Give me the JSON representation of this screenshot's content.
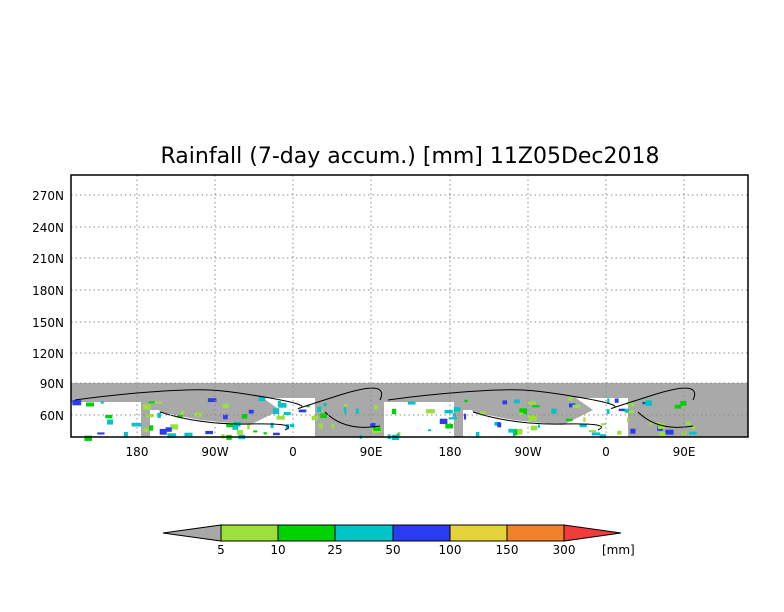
{
  "title": "Rainfall (7-day accum.) [mm] 11Z05Dec2018",
  "map": {
    "lat_labels": [
      "270N",
      "240N",
      "210N",
      "180N",
      "150N",
      "120N",
      "90N",
      "60N"
    ],
    "lon_labels": [
      "180",
      "90W",
      "0",
      "90E",
      "180",
      "90W",
      "0",
      "90E"
    ],
    "land_color": "#a9a9a9",
    "ocean_color": "#ffffff",
    "coast_color": "#000000"
  },
  "colorbar": {
    "unit": "[mm]",
    "tick_labels": [
      "5",
      "10",
      "25",
      "50",
      "100",
      "150",
      "300"
    ],
    "colors": [
      "#a8a8a8",
      "#9be03c",
      "#00d200",
      "#00c4c8",
      "#2a3cf0",
      "#e6d23a",
      "#f2822a",
      "#f03c3c"
    ]
  }
}
